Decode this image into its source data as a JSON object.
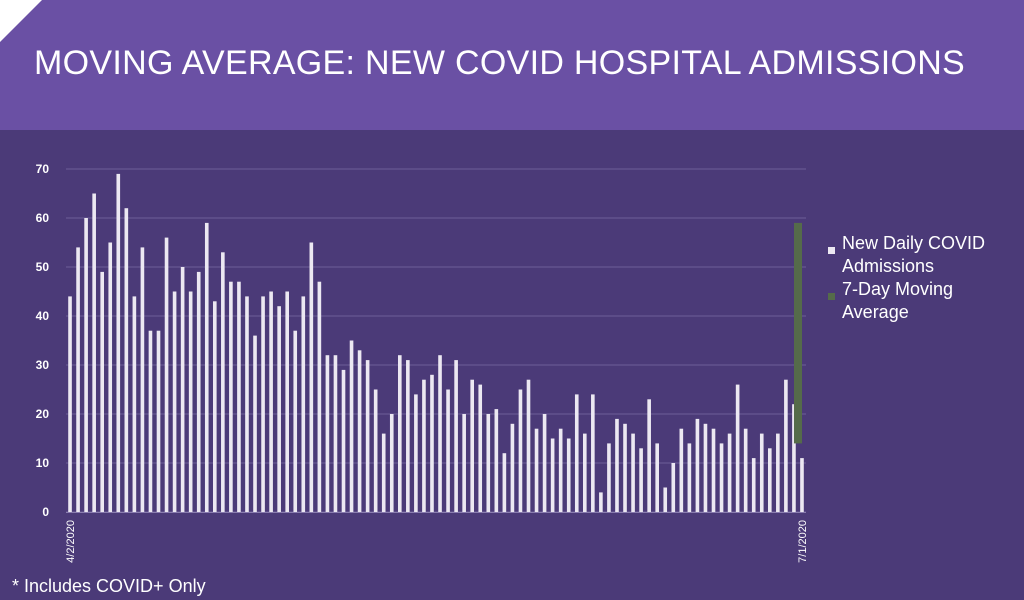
{
  "title": "MOVING AVERAGE: NEW COVID HOSPITAL ADMISSIONS",
  "footnote": "* Includes COVID+ Only",
  "colors": {
    "background": "#4b3a78",
    "header": "#6a50a4",
    "bar": "#ece8f2",
    "moving_average": "#556b4a",
    "gridline": "#6e5f98",
    "text": "#ffffff"
  },
  "chart_data": {
    "type": "bar",
    "ylim": [
      0,
      70
    ],
    "yticks": [
      0,
      10,
      20,
      30,
      40,
      50,
      60,
      70
    ],
    "grid": true,
    "legend_position": "right",
    "legend": [
      "New Daily COVID Admissions",
      "7-Day Moving Average"
    ],
    "x_first_label": "4/2/2020",
    "x_last_label": "7/1/2020",
    "series": [
      {
        "name": "New Daily COVID Admissions",
        "values": [
          44,
          54,
          60,
          65,
          49,
          55,
          69,
          62,
          44,
          54,
          37,
          37,
          56,
          45,
          50,
          45,
          49,
          59,
          43,
          53,
          47,
          47,
          44,
          36,
          44,
          45,
          42,
          45,
          37,
          44,
          55,
          47,
          32,
          32,
          29,
          35,
          33,
          31,
          25,
          16,
          20,
          32,
          31,
          24,
          27,
          28,
          32,
          25,
          31,
          20,
          27,
          26,
          20,
          21,
          12,
          18,
          25,
          27,
          17,
          20,
          15,
          17,
          15,
          24,
          16,
          24,
          4,
          14,
          19,
          18,
          16,
          13,
          23,
          14,
          5,
          10,
          17,
          14,
          19,
          18,
          17,
          14,
          16,
          26,
          17,
          11,
          16,
          13,
          16,
          27,
          22,
          11
        ]
      },
      {
        "name": "7-Day Moving Average",
        "range": [
          14,
          59
        ]
      }
    ]
  }
}
